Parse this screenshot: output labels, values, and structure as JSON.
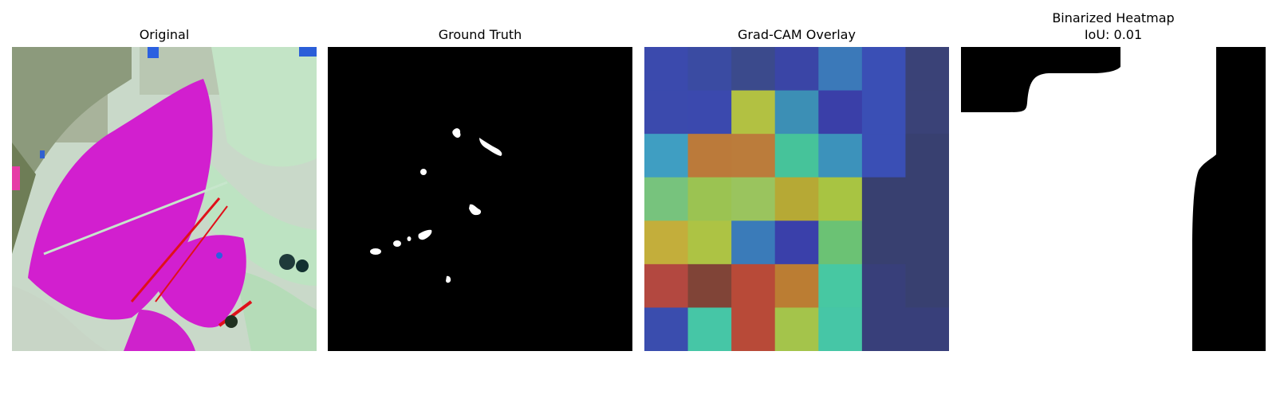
{
  "panels": [
    {
      "title": "Original"
    },
    {
      "title": "Ground Truth"
    },
    {
      "title": "Grad-CAM Overlay"
    },
    {
      "title": "Binarized Heatmap",
      "subtitle": "IoU: 0.01"
    }
  ],
  "gradcam": {
    "grid_size": [
      7,
      7
    ],
    "colors": [
      [
        "#3b4aad",
        "#3a4ba2",
        "#3b4a8c",
        "#3a45a6",
        "#3b79b9",
        "#3a4fb5",
        "#3a4277"
      ],
      [
        "#3b4aad",
        "#3b49ae",
        "#b2c142",
        "#3c8fb5",
        "#3a3fa8",
        "#3a4fb5",
        "#3a4277"
      ],
      [
        "#3f9ec2",
        "#bb7a3a",
        "#bb7c3b",
        "#46c39a",
        "#3c92bb",
        "#3a4fb5",
        "#384070"
      ],
      [
        "#77c37d",
        "#9bc352",
        "#9ac45e",
        "#b6a935",
        "#a8c442",
        "#384070",
        "#384070"
      ],
      [
        "#c3ae3b",
        "#adc344",
        "#3a7bb9",
        "#3a40aa",
        "#6bc274",
        "#384070",
        "#384070"
      ],
      [
        "#b34840",
        "#804437",
        "#b84a38",
        "#bb7d33",
        "#47c8a2",
        "#383f7a",
        "#384070"
      ],
      [
        "#3a4dae",
        "#46c6a6",
        "#b84a38",
        "#a4c44b",
        "#46c6a6",
        "#383f7a",
        "#383f7a"
      ]
    ]
  }
}
